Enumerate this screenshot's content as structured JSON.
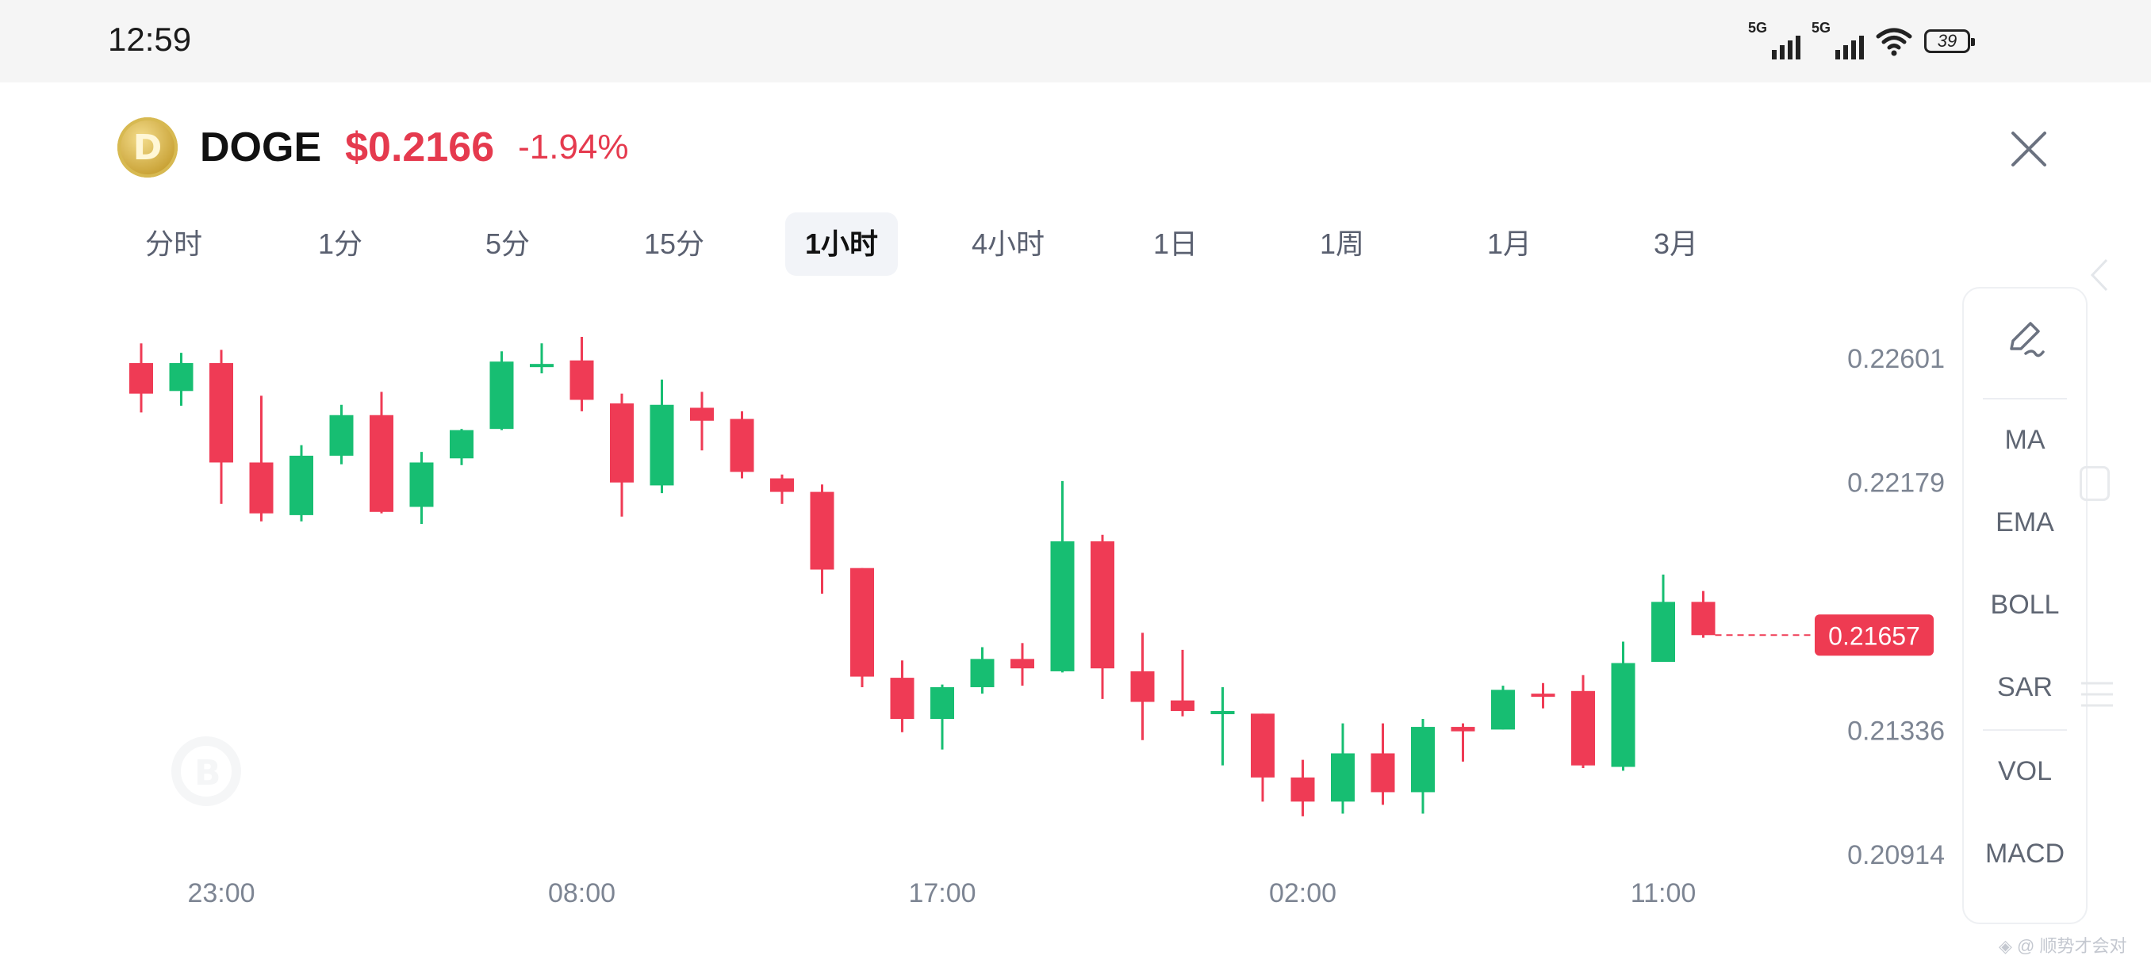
{
  "status_bar": {
    "time": "12:59",
    "sim1": "5G",
    "sim2": "5G",
    "battery": "39"
  },
  "header": {
    "coin_symbol": "DOGE",
    "price": "$0.2166",
    "change": "-1.94%",
    "logo_letter": "D"
  },
  "tabs": [
    "分时",
    "1分",
    "5分",
    "15分",
    "1小时",
    "4小时",
    "1日",
    "1周",
    "1月",
    "3月"
  ],
  "active_tab": "1小时",
  "side_panel": {
    "items": [
      "MA",
      "EMA",
      "BOLL",
      "SAR",
      "VOL",
      "MACD"
    ]
  },
  "watermark_text": "◈ @ 顺势才会对",
  "colors": {
    "up": "#17be72",
    "down": "#ef3b55",
    "text_gray": "#7d8593"
  },
  "chart_data": {
    "type": "candlestick",
    "y_axis_labels": [
      "0.22601",
      "0.22179",
      "0.21336",
      "0.20914"
    ],
    "ylim": [
      0.2085,
      0.2278
    ],
    "x_tick_labels": [
      {
        "label": "23:00",
        "index": 2
      },
      {
        "label": "08:00",
        "index": 11
      },
      {
        "label": "17:00",
        "index": 20
      },
      {
        "label": "02:00",
        "index": 29
      },
      {
        "label": "11:00",
        "index": 38
      }
    ],
    "last_price": 0.21657,
    "last_price_label": "0.21657",
    "candles": [
      {
        "o": 0.22582,
        "h": 0.22649,
        "l": 0.22414,
        "c": 0.22478
      },
      {
        "o": 0.22487,
        "h": 0.22617,
        "l": 0.22437,
        "c": 0.22582
      },
      {
        "o": 0.22582,
        "h": 0.22627,
        "l": 0.22103,
        "c": 0.22244
      },
      {
        "o": 0.22244,
        "h": 0.22471,
        "l": 0.22044,
        "c": 0.22071
      },
      {
        "o": 0.22065,
        "h": 0.22303,
        "l": 0.22044,
        "c": 0.22267
      },
      {
        "o": 0.22267,
        "h": 0.2244,
        "l": 0.22238,
        "c": 0.22405
      },
      {
        "o": 0.22405,
        "h": 0.22484,
        "l": 0.22071,
        "c": 0.22076
      },
      {
        "o": 0.22093,
        "h": 0.2228,
        "l": 0.22035,
        "c": 0.22244
      },
      {
        "o": 0.22258,
        "h": 0.22358,
        "l": 0.22235,
        "c": 0.22354
      },
      {
        "o": 0.22358,
        "h": 0.22622,
        "l": 0.22354,
        "c": 0.22587
      },
      {
        "o": 0.22579,
        "h": 0.22649,
        "l": 0.22547,
        "c": 0.22579
      },
      {
        "o": 0.22591,
        "h": 0.22671,
        "l": 0.22418,
        "c": 0.22457
      },
      {
        "o": 0.22445,
        "h": 0.22478,
        "l": 0.2206,
        "c": 0.22176
      },
      {
        "o": 0.22166,
        "h": 0.22526,
        "l": 0.2214,
        "c": 0.2244
      },
      {
        "o": 0.2243,
        "h": 0.22484,
        "l": 0.22285,
        "c": 0.22386
      },
      {
        "o": 0.22392,
        "h": 0.22418,
        "l": 0.2219,
        "c": 0.22212
      },
      {
        "o": 0.2219,
        "h": 0.22203,
        "l": 0.22103,
        "c": 0.22144
      },
      {
        "o": 0.22144,
        "h": 0.22169,
        "l": 0.21798,
        "c": 0.2188
      },
      {
        "o": 0.21885,
        "h": 0.21885,
        "l": 0.2148,
        "c": 0.21516
      },
      {
        "o": 0.21512,
        "h": 0.21571,
        "l": 0.21327,
        "c": 0.21372
      },
      {
        "o": 0.21372,
        "h": 0.21489,
        "l": 0.21268,
        "c": 0.2148
      },
      {
        "o": 0.2148,
        "h": 0.21616,
        "l": 0.21458,
        "c": 0.21576
      },
      {
        "o": 0.21576,
        "h": 0.2163,
        "l": 0.21485,
        "c": 0.21544
      },
      {
        "o": 0.21534,
        "h": 0.22181,
        "l": 0.2153,
        "c": 0.21976
      },
      {
        "o": 0.21976,
        "h": 0.21998,
        "l": 0.2144,
        "c": 0.21544
      },
      {
        "o": 0.21534,
        "h": 0.21665,
        "l": 0.213,
        "c": 0.2143
      },
      {
        "o": 0.21435,
        "h": 0.21607,
        "l": 0.21381,
        "c": 0.21399
      },
      {
        "o": 0.21399,
        "h": 0.2148,
        "l": 0.21214,
        "c": 0.21399
      },
      {
        "o": 0.2139,
        "h": 0.2139,
        "l": 0.21091,
        "c": 0.21173
      },
      {
        "o": 0.21173,
        "h": 0.21233,
        "l": 0.21041,
        "c": 0.21091
      },
      {
        "o": 0.21091,
        "h": 0.21357,
        "l": 0.2105,
        "c": 0.21255
      },
      {
        "o": 0.21255,
        "h": 0.21357,
        "l": 0.2108,
        "c": 0.21123
      },
      {
        "o": 0.21123,
        "h": 0.21372,
        "l": 0.2105,
        "c": 0.21345
      },
      {
        "o": 0.21345,
        "h": 0.21357,
        "l": 0.21227,
        "c": 0.2133
      },
      {
        "o": 0.21336,
        "h": 0.21485,
        "l": 0.21336,
        "c": 0.21471
      },
      {
        "o": 0.21458,
        "h": 0.21494,
        "l": 0.21408,
        "c": 0.21453
      },
      {
        "o": 0.21467,
        "h": 0.21521,
        "l": 0.21205,
        "c": 0.21214
      },
      {
        "o": 0.21209,
        "h": 0.21635,
        "l": 0.21196,
        "c": 0.21562
      },
      {
        "o": 0.21566,
        "h": 0.21863,
        "l": 0.21566,
        "c": 0.2177
      },
      {
        "o": 0.2177,
        "h": 0.21807,
        "l": 0.21648,
        "c": 0.21657
      }
    ]
  }
}
